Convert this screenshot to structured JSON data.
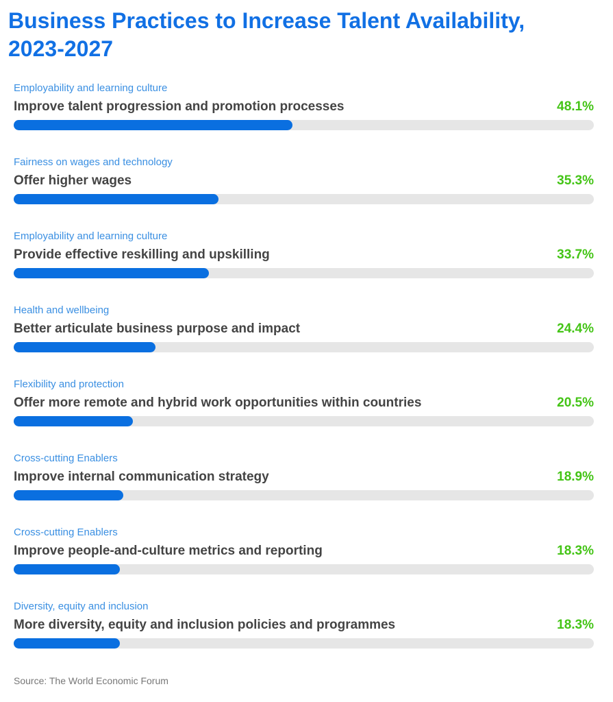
{
  "chart_data": {
    "type": "bar",
    "title": "Business Practices to Increase Talent Availability, 2023-2027",
    "groups": [
      "Employability and learning culture",
      "Fairness on wages and technology",
      "Employability and learning culture",
      "Health and wellbeing",
      "Flexibility and protection",
      "Cross-cutting Enablers",
      "Cross-cutting Enablers",
      "Diversity, equity and inclusion"
    ],
    "categories": [
      "Improve talent progression and promotion processes",
      "Offer higher wages",
      "Provide effective reskilling and upskilling",
      "Better articulate business purpose and impact",
      "Offer more remote and hybrid work opportunities within countries",
      "Improve internal communication strategy",
      "Improve people-and-culture metrics and reporting",
      "More diversity, equity and inclusion policies and programmes"
    ],
    "values": [
      48.1,
      35.3,
      33.7,
      24.4,
      20.5,
      18.9,
      18.3,
      18.3
    ],
    "value_labels": [
      "48.1%",
      "35.3%",
      "33.7%",
      "24.4%",
      "20.5%",
      "18.9%",
      "18.3%",
      "18.3%"
    ],
    "xlim": [
      0,
      100
    ],
    "color": "#0a6fe0",
    "title_color": "#1170e4",
    "group_color": "#3a8fe2",
    "value_label_color": "#44c416",
    "source": "Source: The World Economic Forum"
  }
}
